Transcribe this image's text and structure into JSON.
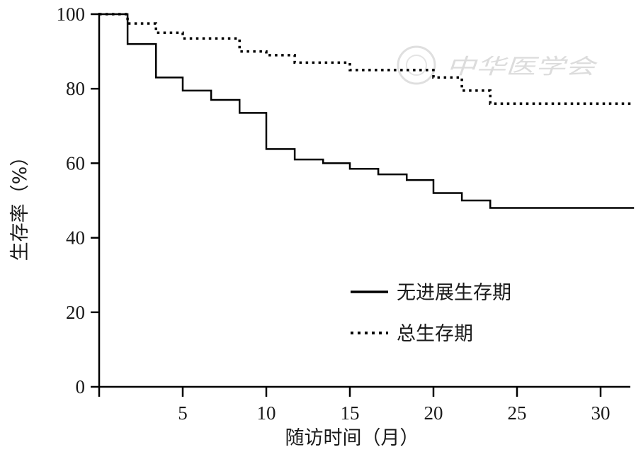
{
  "chart_data": {
    "type": "line",
    "step": true,
    "title": "",
    "xlabel": "随访时间（月）",
    "ylabel": "生存率（%）",
    "xlim": [
      0,
      32
    ],
    "ylim": [
      0,
      100
    ],
    "x_ticks": [
      5,
      10,
      15,
      20,
      25,
      30
    ],
    "y_ticks": [
      0,
      20,
      40,
      60,
      80,
      100
    ],
    "grid": false,
    "legend_position": "center-right",
    "series": [
      {
        "name": "无进展生存期",
        "style": "solid",
        "color": "#000000",
        "points": [
          {
            "x": 0,
            "y": 100
          },
          {
            "x": 1.7,
            "y": 92
          },
          {
            "x": 3.4,
            "y": 83
          },
          {
            "x": 5.0,
            "y": 79.5
          },
          {
            "x": 6.7,
            "y": 77
          },
          {
            "x": 8.4,
            "y": 73.5
          },
          {
            "x": 10.0,
            "y": 63.8
          },
          {
            "x": 11.7,
            "y": 61
          },
          {
            "x": 13.4,
            "y": 60
          },
          {
            "x": 15.0,
            "y": 58.5
          },
          {
            "x": 16.7,
            "y": 57
          },
          {
            "x": 18.4,
            "y": 55.5
          },
          {
            "x": 20.0,
            "y": 52
          },
          {
            "x": 21.7,
            "y": 50
          },
          {
            "x": 23.4,
            "y": 48
          },
          {
            "x": 32,
            "y": 48
          }
        ]
      },
      {
        "name": "总生存期",
        "style": "dotted",
        "color": "#000000",
        "points": [
          {
            "x": 0,
            "y": 100
          },
          {
            "x": 1.7,
            "y": 97.5
          },
          {
            "x": 3.4,
            "y": 95
          },
          {
            "x": 5.0,
            "y": 93.5
          },
          {
            "x": 8.4,
            "y": 90
          },
          {
            "x": 10.0,
            "y": 89
          },
          {
            "x": 11.7,
            "y": 87
          },
          {
            "x": 15.0,
            "y": 85
          },
          {
            "x": 20.0,
            "y": 83
          },
          {
            "x": 21.7,
            "y": 79.5
          },
          {
            "x": 23.4,
            "y": 76
          },
          {
            "x": 32,
            "y": 76
          }
        ]
      }
    ]
  },
  "watermark": {
    "text": "中华医学会"
  }
}
